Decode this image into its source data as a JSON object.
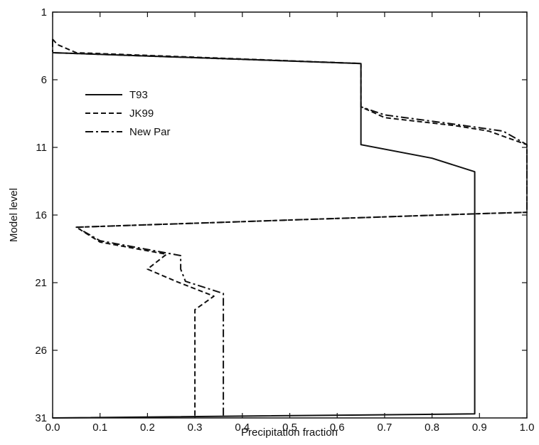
{
  "chart_data": {
    "type": "line",
    "xlabel": "Precipitation fraction",
    "ylabel": "Model level",
    "xlim": [
      0.0,
      1.0
    ],
    "ylim": [
      1,
      31
    ],
    "y_inverted": true,
    "x_ticks": [
      0.0,
      0.1,
      0.2,
      0.3,
      0.4,
      0.5,
      0.6,
      0.7,
      0.8,
      0.9,
      1.0
    ],
    "x_tick_labels": [
      "0.0",
      "0.1",
      "0.2",
      "0.3",
      "0.4",
      "0.5",
      "0.6",
      "0.7",
      "0.8",
      "0.9",
      "1.0"
    ],
    "y_ticks": [
      1,
      6,
      11,
      16,
      21,
      26,
      31
    ],
    "y_tick_labels": [
      "1",
      "6",
      "11",
      "16",
      "21",
      "26",
      "31"
    ],
    "grid": false,
    "legend_position": "upper-left",
    "series": [
      {
        "name": "T93",
        "dash": "solid",
        "color": "#111111",
        "points": [
          [
            0.0,
            4.0
          ],
          [
            0.65,
            4.8
          ],
          [
            0.65,
            10.8
          ],
          [
            0.8,
            11.8
          ],
          [
            0.89,
            12.8
          ],
          [
            0.89,
            30.7
          ],
          [
            0.0,
            31.0
          ]
        ]
      },
      {
        "name": "JK99",
        "dash": "dashed",
        "color": "#111111",
        "points": [
          [
            0.0,
            3.0
          ],
          [
            0.01,
            3.4
          ],
          [
            0.05,
            4.0
          ],
          [
            0.65,
            4.8
          ],
          [
            0.65,
            8.0
          ],
          [
            0.7,
            8.8
          ],
          [
            0.85,
            9.4
          ],
          [
            0.92,
            9.8
          ],
          [
            1.0,
            10.8
          ],
          [
            1.0,
            15.8
          ],
          [
            0.9,
            15.9
          ],
          [
            0.05,
            16.9
          ],
          [
            0.1,
            18.0
          ],
          [
            0.24,
            18.9
          ],
          [
            0.2,
            20.0
          ],
          [
            0.26,
            20.9
          ],
          [
            0.34,
            22.0
          ],
          [
            0.3,
            23.0
          ],
          [
            0.3,
            31.0
          ]
        ]
      },
      {
        "name": "New Par",
        "dash": "dashdot",
        "color": "#111111",
        "points": [
          [
            0.0,
            3.0
          ],
          [
            0.0,
            4.0
          ],
          [
            0.65,
            4.8
          ],
          [
            0.65,
            8.0
          ],
          [
            0.7,
            8.6
          ],
          [
            0.85,
            9.3
          ],
          [
            0.95,
            9.8
          ],
          [
            1.0,
            10.8
          ],
          [
            1.0,
            15.8
          ],
          [
            0.9,
            15.9
          ],
          [
            0.05,
            16.9
          ],
          [
            0.1,
            17.9
          ],
          [
            0.27,
            19.0
          ],
          [
            0.27,
            20.0
          ],
          [
            0.28,
            20.9
          ],
          [
            0.36,
            21.8
          ],
          [
            0.36,
            31.0
          ]
        ]
      }
    ]
  }
}
